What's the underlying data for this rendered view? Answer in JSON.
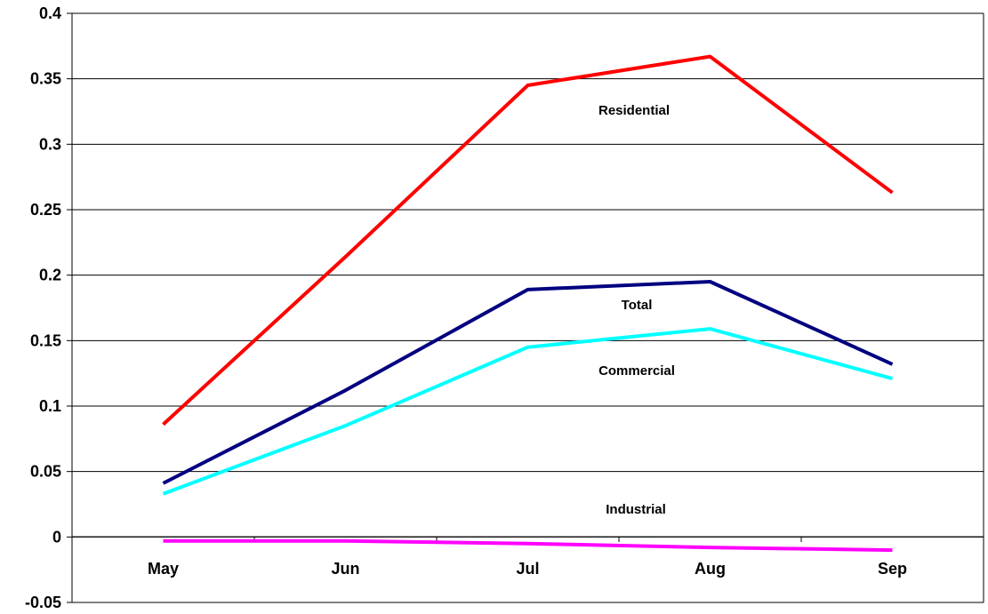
{
  "chart_data": {
    "type": "line",
    "title": "",
    "xlabel": "",
    "ylabel": "",
    "categories": [
      "May",
      "Jun",
      "Jul",
      "Aug",
      "Sep"
    ],
    "ylim": [
      -0.05,
      0.4
    ],
    "yticks": [
      "-0.05",
      "0",
      "0.05",
      "0.1",
      "0.15",
      "0.2",
      "0.25",
      "0.3",
      "0.35",
      "0.4"
    ],
    "grid": true,
    "legend": "none",
    "series": [
      {
        "name": "Residential",
        "color": "#FF0000",
        "values": [
          0.086,
          0.214,
          0.345,
          0.367,
          0.263
        ]
      },
      {
        "name": "Total",
        "color": "#000080",
        "values": [
          0.041,
          0.112,
          0.189,
          0.195,
          0.132
        ]
      },
      {
        "name": "Commercial",
        "color": "#00FFFF",
        "values": [
          0.033,
          0.085,
          0.145,
          0.159,
          0.121
        ]
      },
      {
        "name": "Industrial",
        "color": "#FF00FF",
        "values": [
          -0.003,
          -0.003,
          -0.005,
          -0.008,
          -0.01
        ]
      }
    ],
    "annotations": [
      "Residential",
      "Total",
      "Commercial",
      "Industrial"
    ]
  }
}
